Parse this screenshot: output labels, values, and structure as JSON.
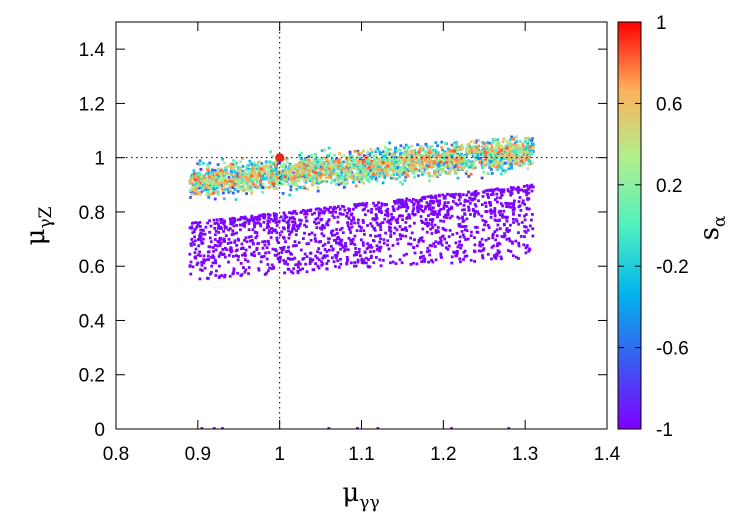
{
  "chart_data": {
    "type": "scatter",
    "title": "",
    "xlabel": {
      "symbol": "μ",
      "subscript": "γγ"
    },
    "ylabel": {
      "symbol": "μ",
      "subscript": "γZ"
    },
    "colorbar_label": {
      "symbol": "s",
      "subscript": "α"
    },
    "xlim": [
      0.8,
      1.4
    ],
    "ylim": [
      0,
      1.5
    ],
    "x_ticks": [
      0.8,
      0.9,
      1.0,
      1.1,
      1.2,
      1.3,
      1.4
    ],
    "x_tick_labels": [
      "0.8",
      "0.9",
      "1",
      "1.1",
      "1.2",
      "1.3",
      "1.4"
    ],
    "y_ticks": [
      0,
      0.2,
      0.4,
      0.6,
      0.8,
      1.0,
      1.2,
      1.4
    ],
    "y_tick_labels": [
      "0",
      "0.2",
      "0.4",
      "0.6",
      "0.8",
      "1",
      "1.2",
      "1.4"
    ],
    "color_range": [
      -1,
      1
    ],
    "colorbar_ticks": [
      1,
      0.6,
      0.2,
      -0.2,
      -0.6,
      -1
    ],
    "colorbar_tick_labels": [
      "1",
      "0.6",
      "0.2",
      "-0.2",
      "-0.6",
      "-1"
    ],
    "colormap": [
      "#8000ff",
      "#3a5bf0",
      "#00b5eb",
      "#52f0c0",
      "#b0f08c",
      "#ffb05c",
      "#ff0000"
    ],
    "reference_lines": {
      "x": 1.0,
      "y": 1.0,
      "style": "dotted"
    },
    "sm_point": {
      "x": 1.0,
      "y": 1.0,
      "color": "#e8261a"
    },
    "regions": [
      {
        "name": "upper band (s_alpha from about -0.8 to 0.8)",
        "x_range": [
          0.89,
          1.31
        ],
        "center_at_xmin": 0.91,
        "center_at_xmax": 1.02,
        "half_width": 0.11,
        "color_value_range": [
          -0.8,
          0.8
        ],
        "points": 2600
      },
      {
        "name": "lower band (s_alpha near -1)",
        "x_range": [
          0.89,
          1.31
        ],
        "bottom_at_xmin": 0.55,
        "bottom_at_xmax": 0.63,
        "top_at_xmin": 0.76,
        "top_at_xmax": 0.9,
        "color_value": -0.97,
        "points": 1500
      }
    ],
    "outliers_on_axis": [
      0.905,
      0.92,
      0.93,
      1.06,
      1.095,
      1.12,
      1.21,
      1.28
    ]
  }
}
